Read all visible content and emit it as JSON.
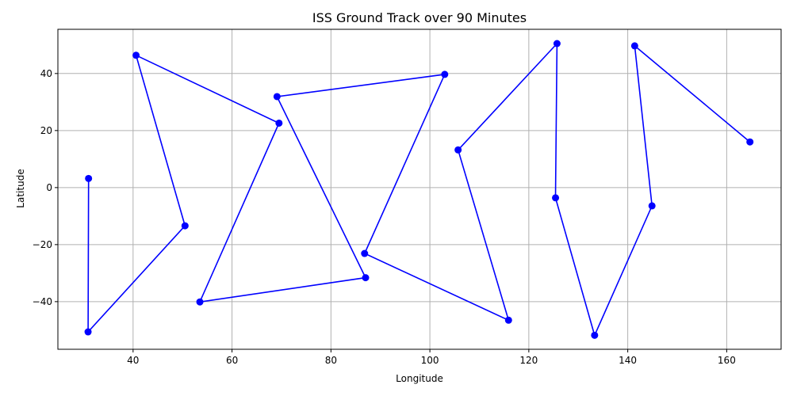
{
  "chart_data": {
    "type": "line",
    "title": "ISS Ground Track over 90 Minutes",
    "xlabel": "Longitude",
    "ylabel": "Latitude",
    "xlim": [
      24.8,
      171.0
    ],
    "ylim": [
      -56.7,
      55.5
    ],
    "xticks": [
      40,
      60,
      80,
      100,
      120,
      140,
      160
    ],
    "yticks": [
      -40,
      -20,
      0,
      20,
      40
    ],
    "grid": true,
    "legend": "none",
    "marker": "circle",
    "color": "#0000ff",
    "series": [
      {
        "x": [
          31.0,
          30.9,
          50.5,
          40.6,
          69.5,
          53.5,
          87.0,
          69.1,
          103.0,
          86.8,
          115.9,
          105.7,
          125.7,
          125.4,
          133.3,
          144.9,
          141.4,
          164.7
        ],
        "y": [
          3.2,
          -50.6,
          -13.4,
          46.4,
          22.6,
          -40.1,
          -31.6,
          31.9,
          39.7,
          -23.1,
          -46.5,
          13.2,
          50.5,
          -3.6,
          -51.8,
          -6.4,
          49.7,
          16.0
        ]
      }
    ]
  }
}
